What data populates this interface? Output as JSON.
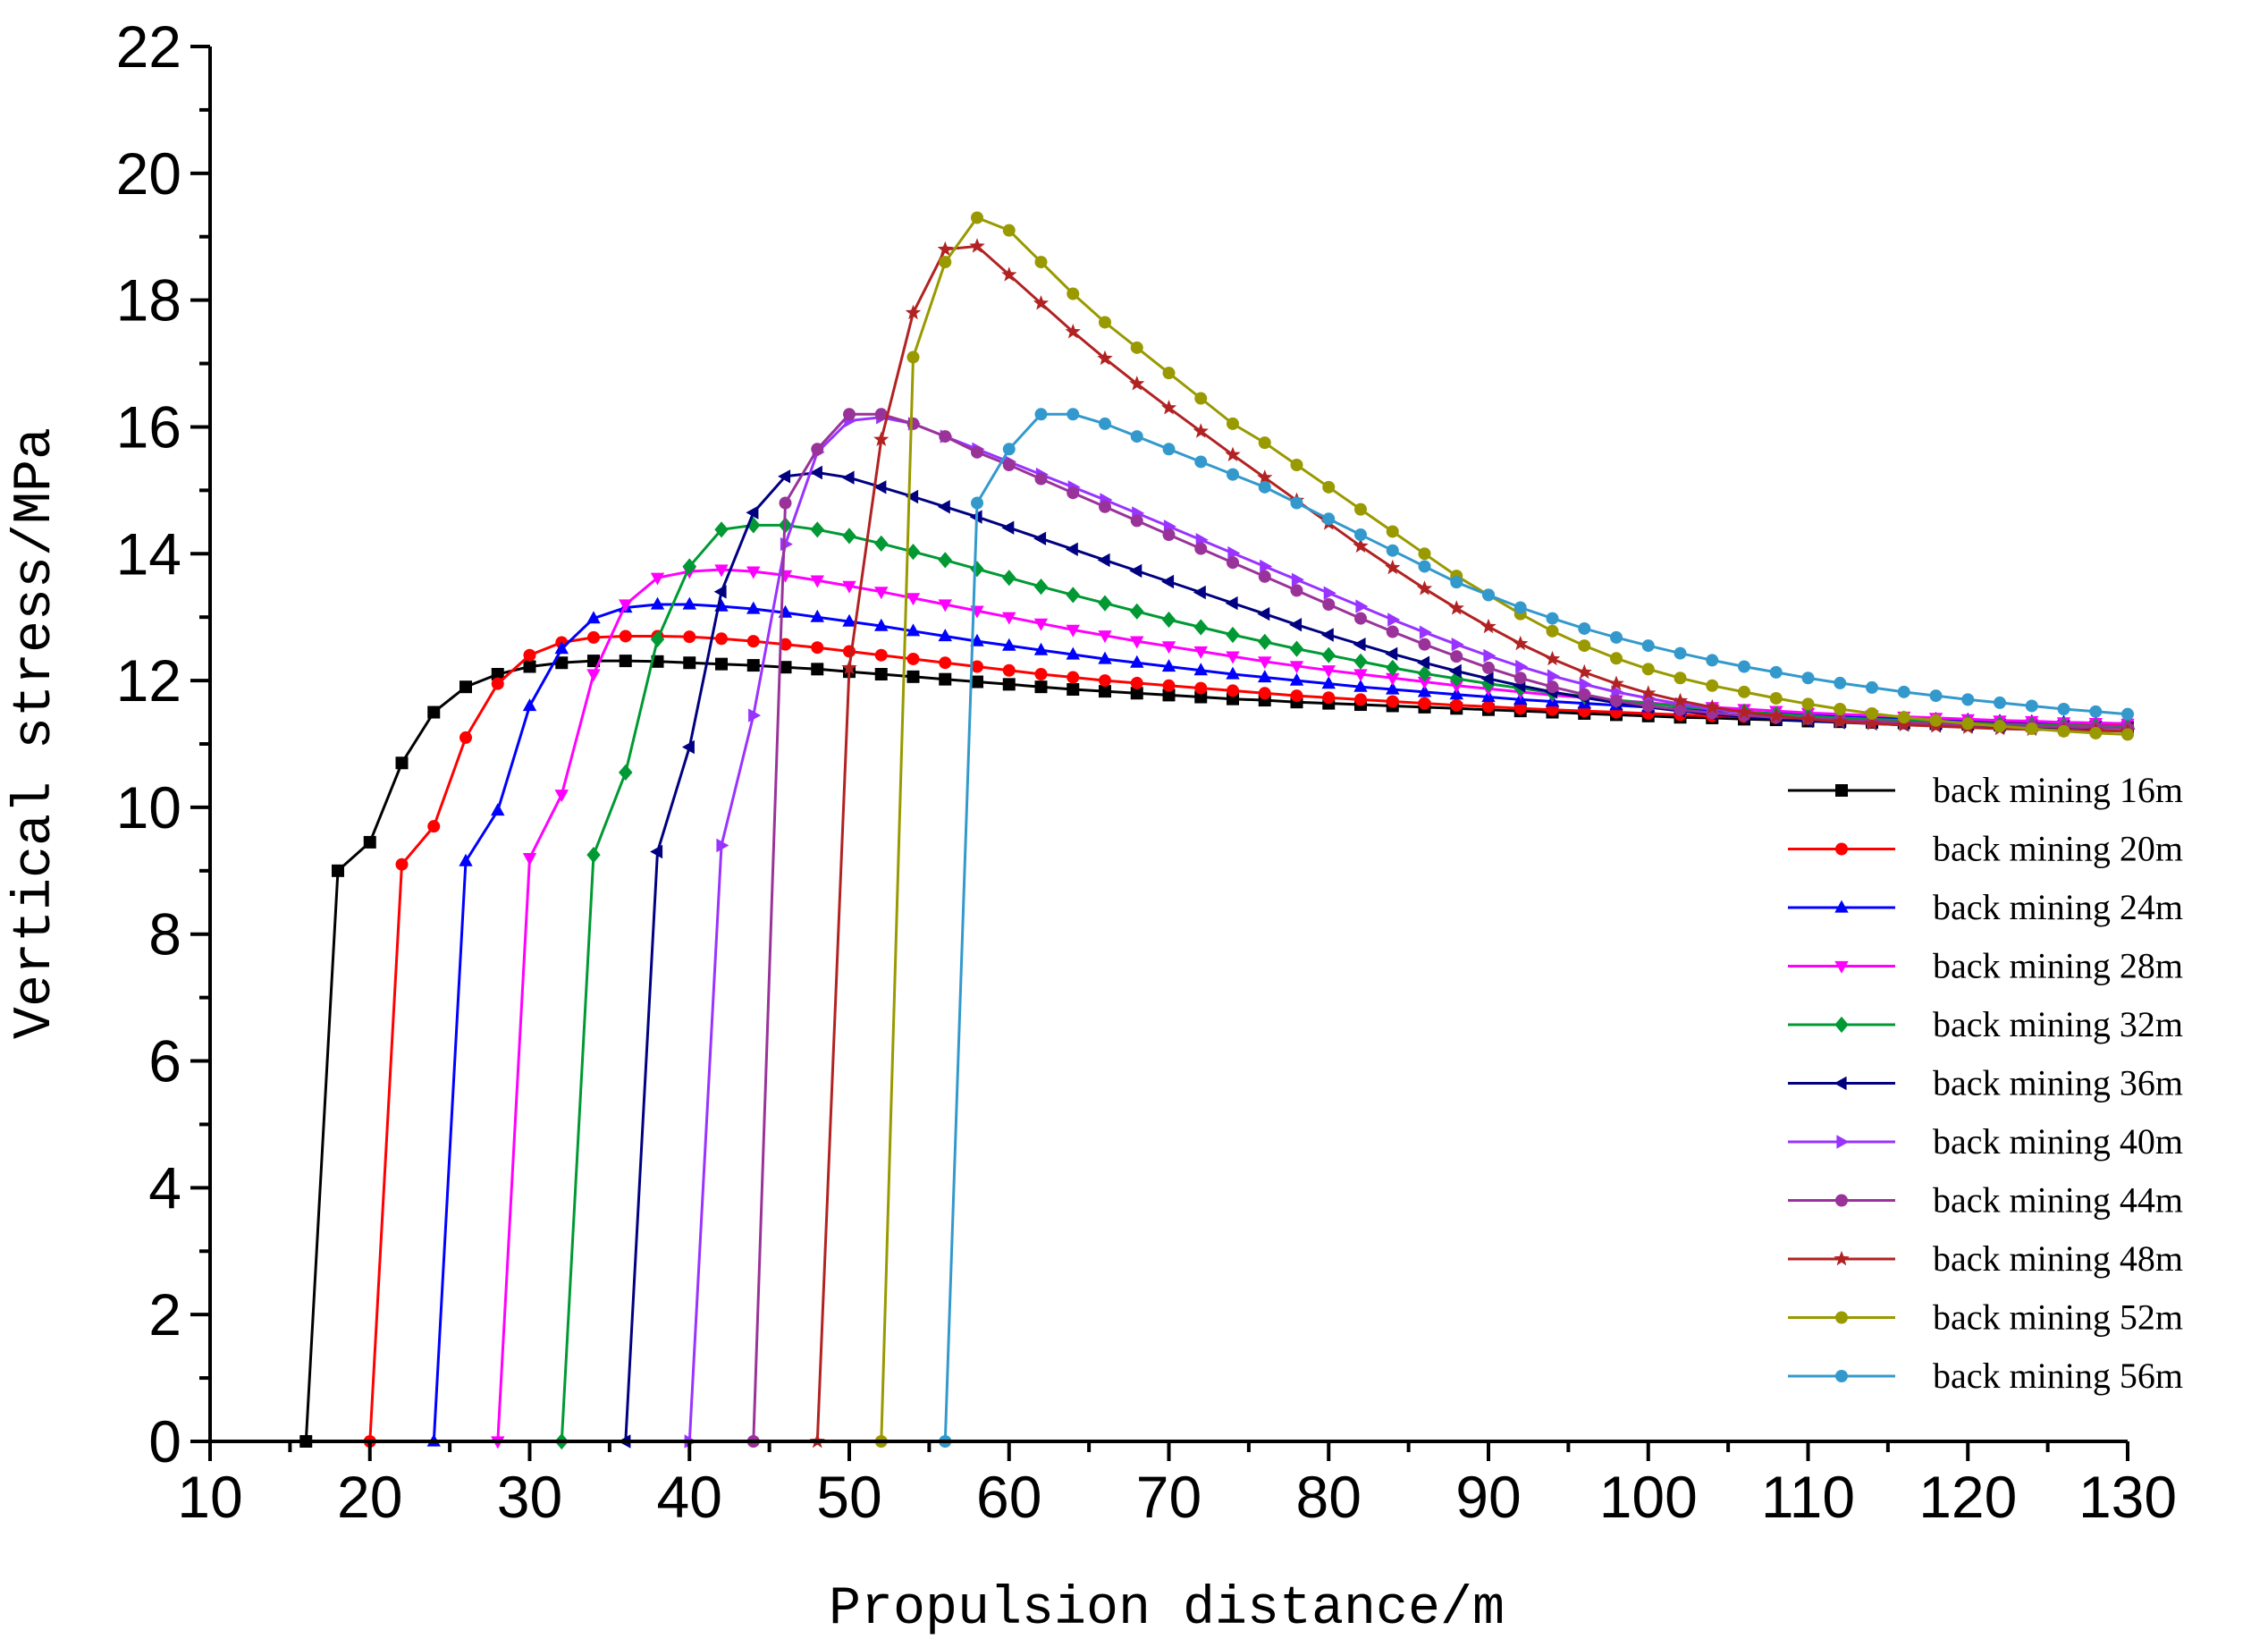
{
  "chart_data": {
    "type": "line",
    "title": "",
    "xlabel": "Propulsion distance/m",
    "ylabel": "Vertical stress/MPa",
    "xlim": [
      10,
      130
    ],
    "ylim": [
      0,
      22
    ],
    "xticks": [
      10,
      20,
      30,
      40,
      50,
      60,
      70,
      80,
      90,
      100,
      110,
      120,
      130
    ],
    "yticks": [
      0,
      2,
      4,
      6,
      8,
      10,
      12,
      14,
      16,
      18,
      20,
      22
    ],
    "grid": false,
    "legend_position": "right",
    "series": [
      {
        "name": "back mining 16m",
        "color": "#000000",
        "marker": "square",
        "x": [
          16,
          18,
          20,
          22,
          24,
          26,
          28,
          30,
          32,
          34,
          36,
          38,
          40,
          42,
          44,
          46,
          48,
          50,
          52,
          54,
          56,
          58,
          60,
          62,
          64,
          66,
          68,
          70,
          72,
          74,
          76,
          78,
          80,
          82,
          84,
          86,
          88,
          90,
          92,
          94,
          96,
          98,
          100,
          102,
          104,
          106,
          108,
          110,
          112,
          114,
          116,
          118,
          120,
          122,
          124,
          126,
          128,
          130
        ],
        "y": [
          0,
          9,
          9.45,
          10.7,
          11.5,
          11.9,
          12.1,
          12.22,
          12.28,
          12.31,
          12.31,
          12.3,
          12.28,
          12.26,
          12.24,
          12.21,
          12.18,
          12.14,
          12.1,
          12.06,
          12.02,
          11.98,
          11.94,
          11.9,
          11.86,
          11.83,
          11.8,
          11.77,
          11.74,
          11.71,
          11.69,
          11.66,
          11.64,
          11.62,
          11.6,
          11.58,
          11.56,
          11.54,
          11.52,
          11.5,
          11.48,
          11.46,
          11.44,
          11.42,
          11.41,
          11.39,
          11.38,
          11.36,
          11.35,
          11.34,
          11.33,
          11.32,
          11.31,
          11.3,
          11.29,
          11.28,
          11.27,
          11.26
        ]
      },
      {
        "name": "back mining 20m",
        "color": "#ff0000",
        "marker": "circle",
        "x": [
          20,
          22,
          24,
          26,
          28,
          30,
          32,
          34,
          36,
          38,
          40,
          42,
          44,
          46,
          48,
          50,
          52,
          54,
          56,
          58,
          60,
          62,
          64,
          66,
          68,
          70,
          72,
          74,
          76,
          78,
          80,
          82,
          84,
          86,
          88,
          90,
          92,
          94,
          96,
          98,
          100,
          102,
          104,
          106,
          108,
          110,
          112,
          114,
          116,
          118,
          120,
          122,
          124,
          126,
          128,
          130
        ],
        "y": [
          0,
          9.1,
          9.7,
          11.1,
          11.95,
          12.4,
          12.6,
          12.68,
          12.7,
          12.7,
          12.69,
          12.66,
          12.62,
          12.57,
          12.52,
          12.46,
          12.4,
          12.34,
          12.28,
          12.22,
          12.16,
          12.1,
          12.05,
          12,
          11.96,
          11.92,
          11.88,
          11.84,
          11.8,
          11.76,
          11.73,
          11.7,
          11.67,
          11.64,
          11.61,
          11.59,
          11.56,
          11.54,
          11.52,
          11.5,
          11.48,
          11.46,
          11.44,
          11.43,
          11.41,
          11.4,
          11.38,
          11.37,
          11.36,
          11.35,
          11.34,
          11.33,
          11.32,
          11.31,
          11.3,
          11.3
        ]
      },
      {
        "name": "back mining 24m",
        "color": "#0000ff",
        "marker": "triangle-up",
        "x": [
          24,
          26,
          28,
          30,
          32,
          34,
          36,
          38,
          40,
          42,
          44,
          46,
          48,
          50,
          52,
          54,
          56,
          58,
          60,
          62,
          64,
          66,
          68,
          70,
          72,
          74,
          76,
          78,
          80,
          82,
          84,
          86,
          88,
          90,
          92,
          94,
          96,
          98,
          100,
          102,
          104,
          106,
          108,
          110,
          112,
          114,
          116,
          118,
          120,
          122,
          124,
          126,
          128,
          130
        ],
        "y": [
          0,
          9.15,
          9.95,
          11.6,
          12.5,
          12.98,
          13.15,
          13.2,
          13.2,
          13.17,
          13.13,
          13.07,
          13,
          12.93,
          12.86,
          12.78,
          12.7,
          12.62,
          12.55,
          12.48,
          12.41,
          12.34,
          12.28,
          12.22,
          12.16,
          12.1,
          12.05,
          12,
          11.95,
          11.9,
          11.86,
          11.82,
          11.78,
          11.74,
          11.7,
          11.67,
          11.64,
          11.61,
          11.58,
          11.55,
          11.53,
          11.5,
          11.48,
          11.46,
          11.44,
          11.42,
          11.41,
          11.39,
          11.38,
          11.36,
          11.35,
          11.34,
          11.33,
          11.32
        ]
      },
      {
        "name": "back mining 28m",
        "color": "#ff00ff",
        "marker": "triangle-down",
        "x": [
          28,
          30,
          32,
          34,
          36,
          38,
          40,
          42,
          44,
          46,
          48,
          50,
          52,
          54,
          56,
          58,
          60,
          62,
          64,
          66,
          68,
          70,
          72,
          74,
          76,
          78,
          80,
          82,
          84,
          86,
          88,
          90,
          92,
          94,
          96,
          98,
          100,
          102,
          104,
          106,
          108,
          110,
          112,
          114,
          116,
          118,
          120,
          122,
          124,
          126,
          128,
          130
        ],
        "y": [
          0,
          9.2,
          10.2,
          12.1,
          13.2,
          13.62,
          13.72,
          13.75,
          13.72,
          13.66,
          13.58,
          13.49,
          13.4,
          13.3,
          13.2,
          13.1,
          13,
          12.9,
          12.8,
          12.71,
          12.62,
          12.54,
          12.46,
          12.38,
          12.3,
          12.23,
          12.16,
          12.1,
          12.04,
          11.98,
          11.92,
          11.87,
          11.82,
          11.77,
          11.73,
          11.69,
          11.65,
          11.61,
          11.58,
          11.55,
          11.52,
          11.49,
          11.47,
          11.45,
          11.43,
          11.41,
          11.39,
          11.37,
          11.36,
          11.34,
          11.33,
          11.32
        ]
      },
      {
        "name": "back mining 32m",
        "color": "#009933",
        "marker": "diamond",
        "x": [
          32,
          34,
          36,
          38,
          40,
          42,
          44,
          46,
          48,
          50,
          52,
          54,
          56,
          58,
          60,
          62,
          64,
          66,
          68,
          70,
          72,
          74,
          76,
          78,
          80,
          82,
          84,
          86,
          88,
          90,
          92,
          94,
          96,
          98,
          100,
          102,
          104,
          106,
          108,
          110,
          112,
          114,
          116,
          118,
          120,
          122,
          124,
          126,
          128,
          130
        ],
        "y": [
          0,
          9.25,
          10.55,
          12.65,
          13.8,
          14.38,
          14.45,
          14.45,
          14.38,
          14.28,
          14.16,
          14.03,
          13.9,
          13.76,
          13.62,
          13.48,
          13.35,
          13.22,
          13.09,
          12.96,
          12.84,
          12.72,
          12.61,
          12.5,
          12.4,
          12.3,
          12.2,
          12.11,
          12.03,
          11.95,
          11.88,
          11.81,
          11.75,
          11.69,
          11.64,
          11.59,
          11.55,
          11.51,
          11.47,
          11.44,
          11.41,
          11.39,
          11.37,
          11.35,
          11.33,
          11.31,
          11.3,
          11.29,
          11.28,
          11.27
        ]
      },
      {
        "name": "back mining 36m",
        "color": "#000080",
        "marker": "triangle-left",
        "x": [
          36,
          38,
          40,
          42,
          44,
          46,
          48,
          50,
          52,
          54,
          56,
          58,
          60,
          62,
          64,
          66,
          68,
          70,
          72,
          74,
          76,
          78,
          80,
          82,
          84,
          86,
          88,
          90,
          92,
          94,
          96,
          98,
          100,
          102,
          104,
          106,
          108,
          110,
          112,
          114,
          116,
          118,
          120,
          122,
          124,
          126,
          128,
          130
        ],
        "y": [
          0,
          9.3,
          10.95,
          13.4,
          14.65,
          15.22,
          15.28,
          15.2,
          15.05,
          14.9,
          14.74,
          14.58,
          14.41,
          14.24,
          14.07,
          13.9,
          13.73,
          13.56,
          13.39,
          13.22,
          13.05,
          12.88,
          12.72,
          12.57,
          12.42,
          12.28,
          12.15,
          12.03,
          11.92,
          11.82,
          11.73,
          11.65,
          11.58,
          11.52,
          11.47,
          11.43,
          11.39,
          11.36,
          11.34,
          11.32,
          11.3,
          11.29,
          11.28,
          11.27,
          11.26,
          11.26,
          11.25,
          11.25
        ]
      },
      {
        "name": "back mining 40m",
        "color": "#9933ff",
        "marker": "triangle-right",
        "x": [
          40,
          42,
          44,
          46,
          48,
          50,
          52,
          54,
          56,
          58,
          60,
          62,
          64,
          66,
          68,
          70,
          72,
          74,
          76,
          78,
          80,
          82,
          84,
          86,
          88,
          90,
          92,
          94,
          96,
          98,
          100,
          102,
          104,
          106,
          108,
          110,
          112,
          114,
          116,
          118,
          120,
          122,
          124,
          126,
          128,
          130
        ],
        "y": [
          0,
          9.4,
          11.45,
          14.15,
          15.6,
          16.1,
          16.15,
          16.05,
          15.85,
          15.65,
          15.45,
          15.25,
          15.05,
          14.85,
          14.64,
          14.43,
          14.22,
          14.01,
          13.8,
          13.59,
          13.38,
          13.17,
          12.96,
          12.76,
          12.57,
          12.39,
          12.22,
          12.07,
          11.94,
          11.82,
          11.72,
          11.63,
          11.55,
          11.49,
          11.44,
          11.4,
          11.37,
          11.35,
          11.33,
          11.31,
          11.3,
          11.29,
          11.28,
          11.27,
          11.26,
          11.25
        ]
      },
      {
        "name": "back mining 44m",
        "color": "#993399",
        "marker": "circle",
        "x": [
          44,
          46,
          48,
          50,
          52,
          54,
          56,
          58,
          60,
          62,
          64,
          66,
          68,
          70,
          72,
          74,
          76,
          78,
          80,
          82,
          84,
          86,
          88,
          90,
          92,
          94,
          96,
          98,
          100,
          102,
          104,
          106,
          108,
          110,
          112,
          114,
          116,
          118,
          120,
          122,
          124,
          126,
          128,
          130
        ],
        "y": [
          0,
          14.8,
          15.65,
          16.2,
          16.2,
          16.05,
          15.85,
          15.6,
          15.4,
          15.18,
          14.96,
          14.74,
          14.52,
          14.3,
          14.08,
          13.86,
          13.64,
          13.42,
          13.2,
          12.98,
          12.77,
          12.57,
          12.38,
          12.2,
          12.04,
          11.9,
          11.78,
          11.68,
          11.6,
          11.54,
          11.49,
          11.45,
          11.42,
          11.4,
          11.38,
          11.36,
          11.34,
          11.32,
          11.3,
          11.29,
          11.28,
          11.27,
          11.26,
          11.25
        ]
      },
      {
        "name": "back mining 48m",
        "color": "#b22222",
        "marker": "star",
        "x": [
          48,
          50,
          52,
          54,
          56,
          58,
          60,
          62,
          64,
          66,
          68,
          70,
          72,
          74,
          76,
          78,
          80,
          82,
          84,
          86,
          88,
          90,
          92,
          94,
          96,
          98,
          100,
          102,
          104,
          106,
          108,
          110,
          112,
          114,
          116,
          118,
          120,
          122,
          124,
          126,
          128,
          130
        ],
        "y": [
          0,
          12.2,
          15.8,
          17.8,
          18.8,
          18.85,
          18.4,
          17.95,
          17.5,
          17.08,
          16.68,
          16.3,
          15.93,
          15.56,
          15.2,
          14.84,
          14.48,
          14.12,
          13.78,
          13.45,
          13.14,
          12.85,
          12.58,
          12.34,
          12.13,
          11.95,
          11.8,
          11.68,
          11.58,
          11.5,
          11.44,
          11.39,
          11.35,
          11.32,
          11.3,
          11.28,
          11.26,
          11.24,
          11.23,
          11.22,
          11.21,
          11.2
        ]
      },
      {
        "name": "back mining 52m",
        "color": "#999900",
        "marker": "circle",
        "x": [
          52,
          54,
          56,
          58,
          60,
          62,
          64,
          66,
          68,
          70,
          72,
          74,
          76,
          78,
          80,
          82,
          84,
          86,
          88,
          90,
          92,
          94,
          96,
          98,
          100,
          102,
          104,
          106,
          108,
          110,
          112,
          114,
          116,
          118,
          120,
          122,
          124,
          126,
          128,
          130
        ],
        "y": [
          0,
          17.1,
          18.6,
          19.3,
          19.1,
          18.6,
          18.1,
          17.65,
          17.25,
          16.85,
          16.45,
          16.05,
          15.75,
          15.4,
          15.05,
          14.7,
          14.35,
          14.0,
          13.65,
          13.35,
          13.05,
          12.78,
          12.55,
          12.35,
          12.18,
          12.04,
          11.92,
          11.82,
          11.72,
          11.63,
          11.55,
          11.48,
          11.42,
          11.37,
          11.32,
          11.28,
          11.24,
          11.2,
          11.17,
          11.15
        ]
      },
      {
        "name": "back mining 56m",
        "color": "#3399cc",
        "marker": "circle",
        "x": [
          56,
          58,
          60,
          62,
          64,
          66,
          68,
          70,
          72,
          74,
          76,
          78,
          80,
          82,
          84,
          86,
          88,
          90,
          92,
          94,
          96,
          98,
          100,
          102,
          104,
          106,
          108,
          110,
          112,
          114,
          116,
          118,
          120,
          122,
          124,
          126,
          128,
          130
        ],
        "y": [
          0,
          14.8,
          15.65,
          16.2,
          16.2,
          16.05,
          15.85,
          15.65,
          15.45,
          15.25,
          15.05,
          14.8,
          14.55,
          14.3,
          14.05,
          13.8,
          13.55,
          13.35,
          13.15,
          12.98,
          12.82,
          12.68,
          12.55,
          12.43,
          12.32,
          12.22,
          12.13,
          12.04,
          11.96,
          11.89,
          11.82,
          11.76,
          11.7,
          11.65,
          11.6,
          11.55,
          11.51,
          11.47
        ]
      }
    ]
  }
}
